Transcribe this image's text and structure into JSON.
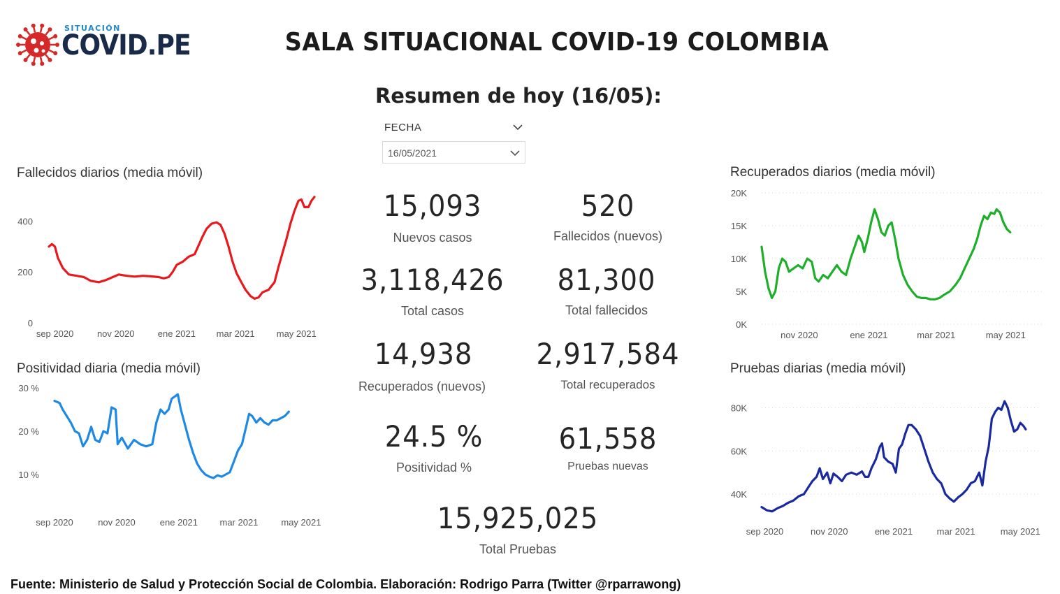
{
  "header": {
    "logo_small": "SITUACIÓN",
    "logo_big": "COVID.PE",
    "title": "SALA SITUACIONAL COVID-19 COLOMBIA",
    "subtitle": "Resumen de hoy (16/05):"
  },
  "filter": {
    "label": "FECHA",
    "selected": "16/05/2021"
  },
  "kpis": {
    "nuevos_casos": {
      "value": "15,093",
      "label": "Nuevos casos"
    },
    "fallecidos_nuevos": {
      "value": "520",
      "label": "Fallecidos (nuevos)"
    },
    "total_casos": {
      "value": "3,118,426",
      "label": "Total casos"
    },
    "total_fallecidos": {
      "value": "81,300",
      "label": "Total fallecidos"
    },
    "recuperados_nuevos": {
      "value": "14,938",
      "label": "Recuperados (nuevos)"
    },
    "total_recuperados": {
      "value": "2,917,584",
      "label": "Total recuperados"
    },
    "positividad": {
      "value": "24.5 %",
      "label": "Positividad %"
    },
    "pruebas_nuevas": {
      "value": "61,558",
      "label": "Pruebas nuevas"
    },
    "total_pruebas": {
      "value": "15,925,025",
      "label": "Total Pruebas"
    }
  },
  "footer": "Fuente: Ministerio de Salud y Protección Social de Colombia. Elaboración: Rodrigo Parra (Twitter @rparrawong)",
  "colors": {
    "fallecidos": "#e8191c",
    "positividad": "#1e88e5",
    "recuperados": "#1fae29",
    "pruebas": "#1a2a9e",
    "logo_virus": "#d62828"
  },
  "chart_data": [
    {
      "id": "fallecidos",
      "type": "line",
      "title": "Fallecidos diarios (media móvil)",
      "color": "#e8191c",
      "ylim": [
        0,
        500
      ],
      "yticks": [
        {
          "v": 0,
          "label": "0"
        },
        {
          "v": 200,
          "label": "200"
        },
        {
          "v": 400,
          "label": "400"
        }
      ],
      "x_range": [
        0,
        266
      ],
      "xticks": [
        {
          "v": 6,
          "label": "sep 2020"
        },
        {
          "v": 67,
          "label": "nov 2020"
        },
        {
          "v": 128,
          "label": "ene 2021"
        },
        {
          "v": 187,
          "label": "mar 2021"
        },
        {
          "v": 248,
          "label": "may 2021"
        }
      ],
      "grid": false,
      "points": [
        [
          0,
          300
        ],
        [
          3,
          310
        ],
        [
          6,
          300
        ],
        [
          9,
          255
        ],
        [
          14,
          215
        ],
        [
          20,
          190
        ],
        [
          28,
          185
        ],
        [
          35,
          180
        ],
        [
          42,
          165
        ],
        [
          50,
          160
        ],
        [
          57,
          168
        ],
        [
          64,
          180
        ],
        [
          70,
          190
        ],
        [
          78,
          185
        ],
        [
          86,
          182
        ],
        [
          94,
          185
        ],
        [
          102,
          183
        ],
        [
          110,
          180
        ],
        [
          115,
          175
        ],
        [
          120,
          180
        ],
        [
          124,
          200
        ],
        [
          128,
          228
        ],
        [
          134,
          240
        ],
        [
          140,
          260
        ],
        [
          146,
          270
        ],
        [
          150,
          305
        ],
        [
          154,
          340
        ],
        [
          158,
          370
        ],
        [
          163,
          390
        ],
        [
          168,
          395
        ],
        [
          172,
          385
        ],
        [
          176,
          350
        ],
        [
          180,
          300
        ],
        [
          184,
          240
        ],
        [
          188,
          195
        ],
        [
          192,
          165
        ],
        [
          197,
          130
        ],
        [
          202,
          105
        ],
        [
          206,
          95
        ],
        [
          210,
          100
        ],
        [
          214,
          120
        ],
        [
          220,
          130
        ],
        [
          226,
          160
        ],
        [
          230,
          220
        ],
        [
          234,
          275
        ],
        [
          238,
          330
        ],
        [
          242,
          390
        ],
        [
          246,
          440
        ],
        [
          250,
          480
        ],
        [
          253,
          485
        ],
        [
          256,
          455
        ],
        [
          260,
          455
        ],
        [
          263,
          480
        ],
        [
          266,
          495
        ]
      ]
    },
    {
      "id": "positividad",
      "type": "line",
      "title": "Positividad diaria (media móvil)",
      "color": "#1e88e5",
      "ylim": [
        5,
        30
      ],
      "yticks": [
        {
          "v": 10,
          "label": "10 %"
        },
        {
          "v": 20,
          "label": "20 %"
        },
        {
          "v": 30,
          "label": "30 %"
        }
      ],
      "x_range": [
        0,
        264
      ],
      "xticks": [
        {
          "v": 0,
          "label": "sep 2020"
        },
        {
          "v": 61,
          "label": "nov 2020"
        },
        {
          "v": 122,
          "label": "ene 2021"
        },
        {
          "v": 181,
          "label": "mar 2021"
        },
        {
          "v": 242,
          "label": "may 2021"
        }
      ],
      "grid": false,
      "points": [
        [
          0,
          27
        ],
        [
          5,
          26.5
        ],
        [
          8,
          25
        ],
        [
          12,
          23.5
        ],
        [
          16,
          22
        ],
        [
          20,
          20
        ],
        [
          24,
          19.5
        ],
        [
          28,
          16.5
        ],
        [
          32,
          18
        ],
        [
          36,
          21
        ],
        [
          40,
          18
        ],
        [
          44,
          17.5
        ],
        [
          48,
          20
        ],
        [
          52,
          19.5
        ],
        [
          56,
          25.5
        ],
        [
          60,
          25
        ],
        [
          62,
          17
        ],
        [
          66,
          18.5
        ],
        [
          72,
          16
        ],
        [
          78,
          18
        ],
        [
          84,
          17
        ],
        [
          90,
          16.5
        ],
        [
          96,
          17
        ],
        [
          100,
          22
        ],
        [
          104,
          25
        ],
        [
          108,
          24
        ],
        [
          112,
          25
        ],
        [
          115,
          27.5
        ],
        [
          118,
          28
        ],
        [
          121,
          28.5
        ],
        [
          124,
          25
        ],
        [
          128,
          21.5
        ],
        [
          132,
          18
        ],
        [
          136,
          15
        ],
        [
          140,
          12.5
        ],
        [
          144,
          11
        ],
        [
          148,
          10
        ],
        [
          152,
          9.5
        ],
        [
          156,
          9.2
        ],
        [
          160,
          9.8
        ],
        [
          164,
          9.5
        ],
        [
          168,
          10
        ],
        [
          172,
          10.5
        ],
        [
          176,
          13
        ],
        [
          180,
          15.5
        ],
        [
          184,
          17
        ],
        [
          188,
          21
        ],
        [
          191,
          24
        ],
        [
          194,
          23.5
        ],
        [
          198,
          22
        ],
        [
          202,
          23
        ],
        [
          206,
          22
        ],
        [
          210,
          21.5
        ],
        [
          214,
          22.5
        ],
        [
          218,
          22.5
        ],
        [
          222,
          23
        ],
        [
          226,
          23.5
        ],
        [
          230,
          24.5
        ]
      ]
    },
    {
      "id": "recuperados",
      "type": "line",
      "title": "Recuperados diarios (media móvil)",
      "color": "#1fae29",
      "ylim": [
        0,
        20000
      ],
      "yticks": [
        {
          "v": 0,
          "label": "0K"
        },
        {
          "v": 5000,
          "label": "5K"
        },
        {
          "v": 10000,
          "label": "10K"
        },
        {
          "v": 15000,
          "label": "15K"
        },
        {
          "v": 20000,
          "label": "20K"
        }
      ],
      "x_range": [
        0,
        242
      ],
      "xticks": [
        {
          "v": 33,
          "label": "nov 2020"
        },
        {
          "v": 94,
          "label": "ene 2021"
        },
        {
          "v": 153,
          "label": "mar 2021"
        },
        {
          "v": 214,
          "label": "may 2021"
        }
      ],
      "grid": true,
      "points": [
        [
          0,
          11800
        ],
        [
          3,
          8000
        ],
        [
          6,
          5500
        ],
        [
          9,
          4000
        ],
        [
          12,
          5000
        ],
        [
          15,
          8500
        ],
        [
          18,
          10000
        ],
        [
          21,
          9500
        ],
        [
          24,
          8000
        ],
        [
          28,
          8500
        ],
        [
          32,
          9000
        ],
        [
          36,
          8500
        ],
        [
          40,
          10000
        ],
        [
          44,
          9500
        ],
        [
          47,
          7000
        ],
        [
          50,
          6500
        ],
        [
          54,
          7500
        ],
        [
          58,
          7000
        ],
        [
          62,
          8000
        ],
        [
          66,
          9000
        ],
        [
          70,
          8000
        ],
        [
          74,
          7500
        ],
        [
          78,
          10000
        ],
        [
          82,
          12000
        ],
        [
          85,
          13500
        ],
        [
          88,
          12500
        ],
        [
          90,
          11000
        ],
        [
          93,
          13000
        ],
        [
          96,
          15500
        ],
        [
          99,
          17500
        ],
        [
          102,
          16000
        ],
        [
          105,
          14000
        ],
        [
          108,
          13500
        ],
        [
          111,
          15000
        ],
        [
          114,
          15500
        ],
        [
          117,
          13000
        ],
        [
          120,
          10000
        ],
        [
          124,
          7500
        ],
        [
          128,
          6000
        ],
        [
          132,
          5000
        ],
        [
          136,
          4200
        ],
        [
          140,
          4000
        ],
        [
          144,
          4000
        ],
        [
          148,
          3800
        ],
        [
          152,
          3800
        ],
        [
          156,
          4000
        ],
        [
          160,
          4500
        ],
        [
          165,
          5000
        ],
        [
          170,
          6000
        ],
        [
          174,
          7000
        ],
        [
          178,
          8500
        ],
        [
          182,
          10000
        ],
        [
          186,
          11500
        ],
        [
          189,
          13000
        ],
        [
          192,
          15000
        ],
        [
          195,
          16500
        ],
        [
          198,
          16000
        ],
        [
          201,
          17000
        ],
        [
          204,
          16800
        ],
        [
          206,
          17500
        ],
        [
          209,
          17000
        ],
        [
          212,
          15500
        ],
        [
          215,
          14500
        ],
        [
          218,
          14000
        ]
      ]
    },
    {
      "id": "pruebas",
      "type": "line",
      "title": "Pruebas diarias (media móvil)",
      "color": "#1a2a9e",
      "ylim": [
        30000,
        85000
      ],
      "yticks": [
        {
          "v": 40000,
          "label": "40K"
        },
        {
          "v": 60000,
          "label": "60K"
        },
        {
          "v": 80000,
          "label": "80K"
        }
      ],
      "x_range": [
        0,
        258
      ],
      "xticks": [
        {
          "v": 3,
          "label": "sep 2020"
        },
        {
          "v": 64,
          "label": "nov 2020"
        },
        {
          "v": 125,
          "label": "ene 2021"
        },
        {
          "v": 184,
          "label": "mar 2021"
        },
        {
          "v": 245,
          "label": "may 2021"
        }
      ],
      "grid": true,
      "points": [
        [
          0,
          34000
        ],
        [
          5,
          32500
        ],
        [
          10,
          32000
        ],
        [
          15,
          33500
        ],
        [
          20,
          34500
        ],
        [
          25,
          36000
        ],
        [
          30,
          37000
        ],
        [
          35,
          39000
        ],
        [
          40,
          40000
        ],
        [
          44,
          43000
        ],
        [
          48,
          46000
        ],
        [
          52,
          48000
        ],
        [
          55,
          52000
        ],
        [
          58,
          47000
        ],
        [
          62,
          50000
        ],
        [
          65,
          45000
        ],
        [
          68,
          49500
        ],
        [
          72,
          48000
        ],
        [
          76,
          46000
        ],
        [
          80,
          49000
        ],
        [
          85,
          50000
        ],
        [
          90,
          49000
        ],
        [
          95,
          50500
        ],
        [
          98,
          48000
        ],
        [
          101,
          48000
        ],
        [
          104,
          52000
        ],
        [
          108,
          56000
        ],
        [
          112,
          62000
        ],
        [
          114,
          63500
        ],
        [
          116,
          57000
        ],
        [
          120,
          55000
        ],
        [
          124,
          54000
        ],
        [
          127,
          50000
        ],
        [
          130,
          61000
        ],
        [
          133,
          63000
        ],
        [
          136,
          68000
        ],
        [
          139,
          72000
        ],
        [
          142,
          72000
        ],
        [
          146,
          70000
        ],
        [
          150,
          67000
        ],
        [
          154,
          61000
        ],
        [
          158,
          55000
        ],
        [
          162,
          50000
        ],
        [
          166,
          47000
        ],
        [
          170,
          45000
        ],
        [
          174,
          40000
        ],
        [
          178,
          38000
        ],
        [
          182,
          36500
        ],
        [
          186,
          38500
        ],
        [
          190,
          40000
        ],
        [
          194,
          42000
        ],
        [
          198,
          45000
        ],
        [
          202,
          46000
        ],
        [
          206,
          50000
        ],
        [
          209,
          44000
        ],
        [
          212,
          55000
        ],
        [
          215,
          62000
        ],
        [
          218,
          75000
        ],
        [
          221,
          78000
        ],
        [
          224,
          80000
        ],
        [
          227,
          79000
        ],
        [
          230,
          83000
        ],
        [
          233,
          80000
        ],
        [
          236,
          74000
        ],
        [
          239,
          69000
        ],
        [
          242,
          70000
        ],
        [
          245,
          73000
        ],
        [
          248,
          71500
        ],
        [
          250,
          70000
        ]
      ]
    }
  ]
}
